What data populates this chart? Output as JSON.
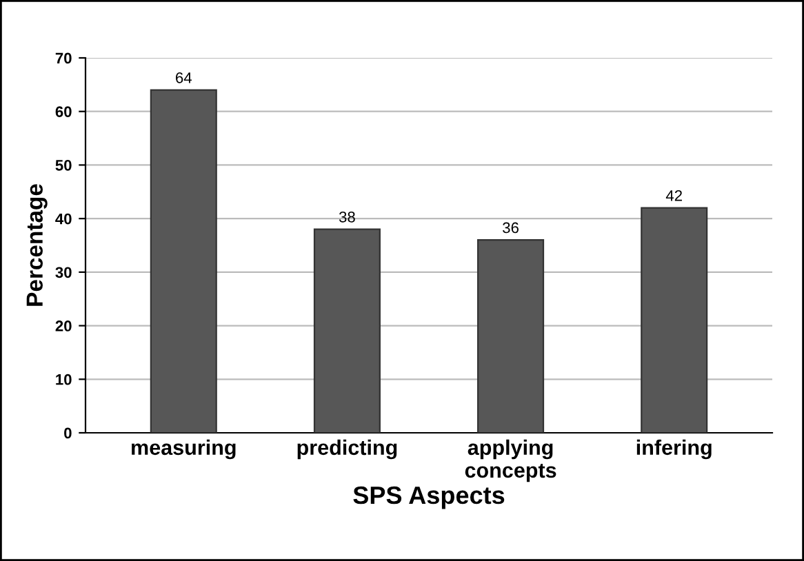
{
  "chart_data": {
    "type": "bar",
    "xlabel": "SPS Aspects",
    "ylabel": "Percentage",
    "categories": [
      "measuring",
      "predicting",
      "applying\nconcepts",
      "infering"
    ],
    "values": [
      64,
      38,
      36,
      42
    ],
    "color": "#575757",
    "ylim": [
      0,
      70
    ],
    "yticks": [
      0,
      10,
      20,
      30,
      40,
      50,
      60,
      70
    ],
    "grid": "y",
    "data_labels": true
  }
}
